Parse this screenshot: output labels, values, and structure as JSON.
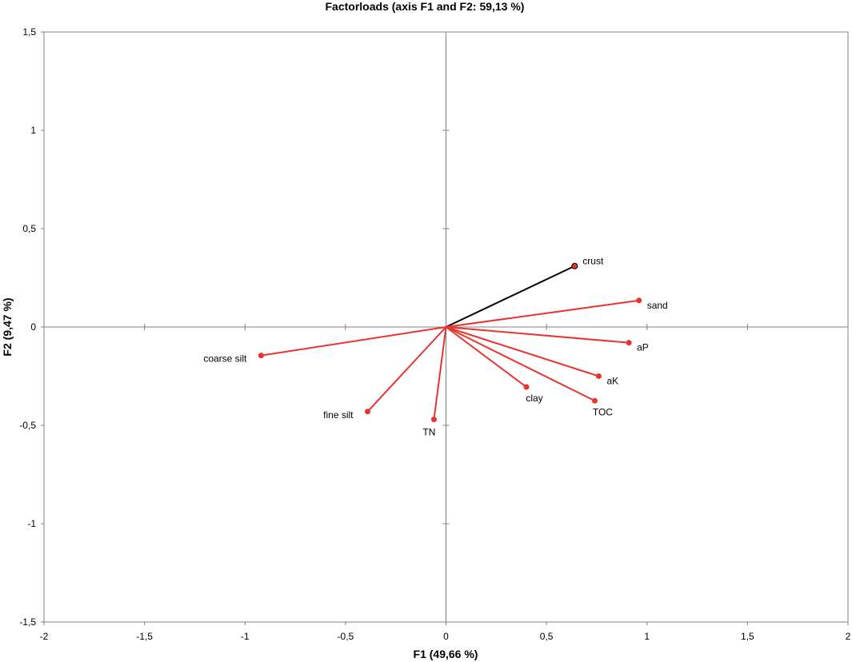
{
  "chart_data": {
    "type": "scatter",
    "title": "Factorloads (axis F1 and F2: 59,13 %)",
    "xlabel": "F1 (49,66 %)",
    "ylabel": "F2 (9,47 %)",
    "xlim": [
      -2,
      2
    ],
    "ylim": [
      -1.5,
      1.5
    ],
    "xticks": [
      -2,
      -1.5,
      -1,
      -0.5,
      0,
      0.5,
      1,
      1.5,
      2
    ],
    "yticks": [
      -1.5,
      -1,
      -0.5,
      0,
      0.5,
      1,
      1.5
    ],
    "xtick_labels": [
      "-2",
      "-1,5",
      "-1",
      "-0,5",
      "0",
      "0,5",
      "1",
      "1,5",
      "2"
    ],
    "ytick_labels": [
      "-1,5",
      "-1",
      "-0,5",
      "0",
      "0,5",
      "1",
      "1,5"
    ],
    "grid": false,
    "points": [
      {
        "label": "crust",
        "x": 0.64,
        "y": 0.31,
        "color": "#000000"
      },
      {
        "label": "sand",
        "x": 0.96,
        "y": 0.135,
        "color": "#e8332f"
      },
      {
        "label": "aP",
        "x": 0.91,
        "y": -0.08,
        "color": "#e8332f"
      },
      {
        "label": "aK",
        "x": 0.76,
        "y": -0.25,
        "color": "#e8332f"
      },
      {
        "label": "TOC",
        "x": 0.74,
        "y": -0.375,
        "color": "#e8332f"
      },
      {
        "label": "clay",
        "x": 0.4,
        "y": -0.305,
        "color": "#e8332f"
      },
      {
        "label": "TN",
        "x": -0.06,
        "y": -0.47,
        "color": "#e8332f"
      },
      {
        "label": "fine silt",
        "x": -0.39,
        "y": -0.43,
        "color": "#e8332f"
      },
      {
        "label": "coarse silt",
        "x": -0.92,
        "y": -0.145,
        "color": "#e8332f"
      }
    ]
  }
}
